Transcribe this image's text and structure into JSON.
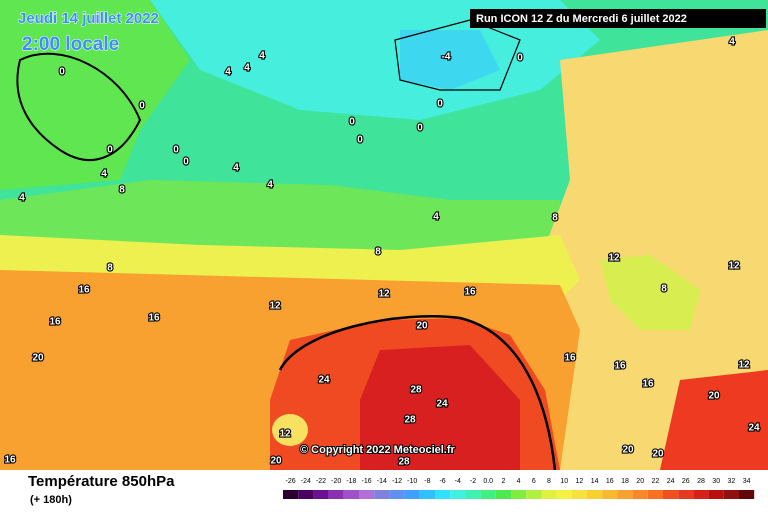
{
  "header": {
    "date": "Jeudi 14 juillet 2022",
    "time": "2:00 locale",
    "run": "Run ICON 12 Z du Mercredi 6 juillet 2022"
  },
  "copyright": "© Copyright 2022 Meteociel.fr",
  "footer": {
    "title": "Température 850hPa",
    "subtitle": "(+ 180h)"
  },
  "legend": {
    "labels": [
      "-26",
      "-24",
      "-22",
      "-20",
      "-18",
      "-16",
      "-14",
      "-12",
      "-10",
      "-8",
      "-6",
      "-4",
      "-2",
      "0.0",
      "2",
      "4",
      "6",
      "8",
      "10",
      "12",
      "14",
      "16",
      "18",
      "20",
      "22",
      "24",
      "26",
      "28",
      "30",
      "32",
      "34"
    ]
  },
  "map": {
    "contour_labels": [
      "0",
      "0",
      "0",
      "0",
      "0",
      "0",
      "0",
      "0",
      "0",
      "0",
      "-4",
      "4",
      "4",
      "4",
      "4",
      "4",
      "4",
      "4",
      "4",
      "4",
      "8",
      "8",
      "8",
      "8",
      "12",
      "12",
      "12",
      "12",
      "8",
      "16",
      "16",
      "16",
      "16",
      "20",
      "20",
      "24",
      "24",
      "28",
      "28",
      "20",
      "24",
      "12",
      "20",
      "28",
      "20",
      "20",
      "16",
      "16",
      "16",
      "16",
      "12"
    ]
  }
}
